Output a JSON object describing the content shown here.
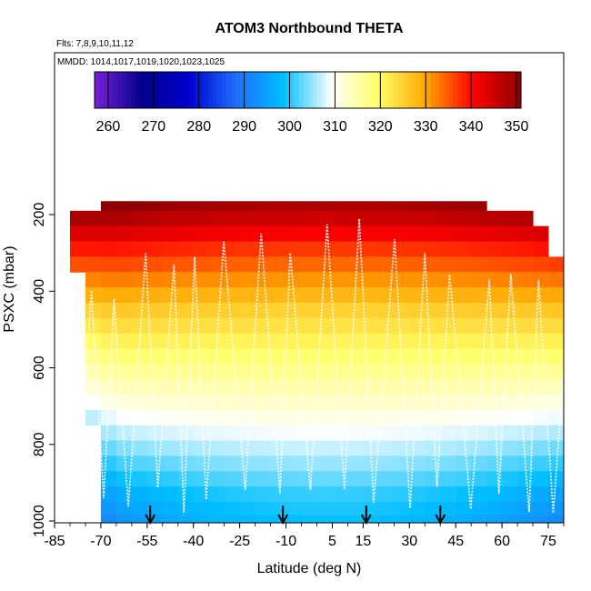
{
  "chart_data": {
    "type": "heatmap",
    "title": "ATOM3 Northbound THETA",
    "subtitle_flights": "Flts: 7,8,9,10,11,12",
    "subtitle_dates": "MMDD: 1014,1017,1019,1020,1023,1025",
    "xlabel": "Latitude (deg N)",
    "ylabel": "PSXC (mbar)",
    "xlim": [
      -85,
      80
    ],
    "ylim": [
      1000,
      0
    ],
    "x_ticks": [
      -85,
      -70,
      -55,
      -40,
      -25,
      -10,
      5,
      15,
      30,
      45,
      60,
      75
    ],
    "y_ticks": [
      200,
      400,
      600,
      800,
      1000
    ],
    "colorbar": {
      "range": [
        257,
        351
      ],
      "ticks": [
        260,
        270,
        280,
        290,
        300,
        310,
        320,
        330,
        340,
        350
      ],
      "colors": [
        "#7a1fd6",
        "#00008b",
        "#0000cd",
        "#1e6fff",
        "#00bfff",
        "#ffffff",
        "#ffff66",
        "#ffa500",
        "#ff0000",
        "#8b0000"
      ]
    },
    "pressure_levels": [
      170,
      210,
      250,
      290,
      330,
      370,
      410,
      450,
      490,
      530,
      570,
      610,
      650,
      690,
      730,
      770,
      810,
      850,
      890,
      930,
      970,
      1000
    ],
    "theta_profile_equator": [
      348,
      345,
      341,
      337,
      334,
      331,
      328,
      325,
      323,
      321,
      319,
      317,
      315,
      313,
      311,
      309,
      307,
      305,
      303,
      301,
      300,
      299
    ],
    "profile_arrows_lat": [
      -54,
      -11,
      16,
      40
    ]
  }
}
